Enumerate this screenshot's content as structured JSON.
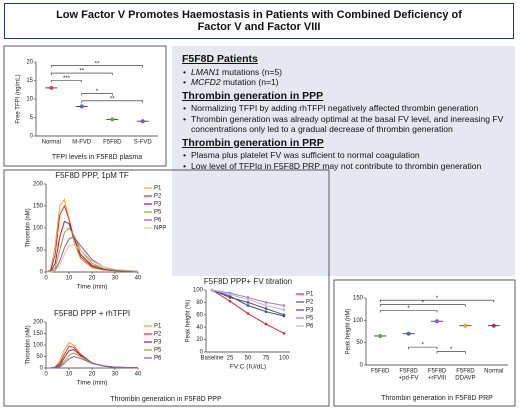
{
  "title": "Low Factor V Promotes Haemostasis in Patients with Combined Deficiency of Factor V and Factor VIII",
  "summary": {
    "patients": {
      "heading": "F5F8D Patients",
      "items": [
        {
          "gene": "LMAN1",
          "rest": " mutations (n=5)"
        },
        {
          "gene": "MCFD2",
          "rest": " mutation (n=1)"
        }
      ]
    },
    "sections": [
      {
        "heading": "Thrombin generation in PPP",
        "items": [
          "Normalizing TFPI by adding rhTFPI negatively affected thrombin generation",
          "Thrombin generation was already optimal at the basal FV level, and inereasing FV concentrations only led to a gradual decrease of thrombin generation"
        ]
      },
      {
        "heading": "Thrombin generation in PRP",
        "items": [
          "Plasma plus platelet FV was sufficient to normal coagulation",
          "Low level of TFPIα in F5F8D PRP may not contribute to thrombin generation"
        ]
      }
    ]
  },
  "middle_caption": "Thrombin generation in F5F8D PPP",
  "chart_data": [
    {
      "type": "dot",
      "ylabel": "Free TFPI (ng/mL)",
      "caption": "TFPI levels in F5F8D plasma",
      "categories": [
        [
          "Normal"
        ],
        [
          "M-FVD"
        ],
        [
          "F5F8D"
        ],
        [
          "S-FVD"
        ]
      ],
      "values": [
        13,
        8,
        4.5,
        4
      ],
      "colors": [
        "#d0455a",
        "#5a6fb0",
        "#5fa84a",
        "#7a5aa8"
      ],
      "ylim": [
        0,
        20
      ],
      "yticks": [
        0,
        5,
        10,
        15,
        20
      ],
      "annotations": [
        "**",
        "**",
        "***",
        "*",
        "**"
      ]
    },
    {
      "type": "line",
      "title": "F5F8D PPP, 1pM TF",
      "xlabel": "Time (min)",
      "ylabel": "Thrombin (nM)",
      "x": [
        0,
        2,
        4,
        6,
        8,
        10,
        12,
        15,
        20,
        25,
        30,
        40
      ],
      "xlim": [
        0,
        40
      ],
      "xticks": [
        0,
        10,
        20,
        30,
        40
      ],
      "ylim": [
        0,
        200
      ],
      "yticks": [
        0,
        50,
        100,
        150,
        200
      ],
      "series": [
        {
          "name": "P1",
          "color": "#e8a13a",
          "values": [
            0,
            5,
            60,
            150,
            165,
            120,
            70,
            30,
            10,
            5,
            3,
            2
          ]
        },
        {
          "name": "P2",
          "color": "#d6332f",
          "values": [
            0,
            3,
            40,
            130,
            150,
            120,
            80,
            35,
            12,
            5,
            3,
            2
          ]
        },
        {
          "name": "P3",
          "color": "#8e2a4a",
          "values": [
            0,
            2,
            20,
            80,
            115,
            110,
            80,
            40,
            15,
            6,
            3,
            2
          ]
        },
        {
          "name": "P5",
          "color": "#8aa23a",
          "values": [
            0,
            1,
            10,
            50,
            90,
            100,
            85,
            50,
            20,
            8,
            4,
            2
          ]
        },
        {
          "name": "P6",
          "color": "#8a5ab8",
          "values": [
            0,
            0,
            5,
            25,
            55,
            75,
            80,
            60,
            28,
            12,
            5,
            2
          ]
        },
        {
          "name": "NPP",
          "color": "#e8c48a",
          "values": [
            0,
            0,
            3,
            15,
            40,
            60,
            62,
            50,
            25,
            12,
            6,
            2
          ]
        }
      ]
    },
    {
      "type": "line",
      "title": "F5F8D PPP + rhTFPI",
      "xlabel": "Time (min)",
      "ylabel": "Thrombin (nM)",
      "x": [
        0,
        2,
        4,
        6,
        8,
        10,
        12,
        15,
        20,
        25,
        30,
        40
      ],
      "xlim": [
        0,
        40
      ],
      "xticks": [
        0,
        10,
        20,
        30,
        40
      ],
      "ylim": [
        0,
        200
      ],
      "yticks": [
        0,
        50,
        100,
        150,
        200
      ],
      "series": [
        {
          "name": "P1",
          "color": "#e8a13a",
          "values": [
            0,
            0,
            5,
            30,
            80,
            110,
            100,
            60,
            20,
            8,
            3,
            1
          ]
        },
        {
          "name": "P2",
          "color": "#d6332f",
          "values": [
            0,
            0,
            3,
            20,
            60,
            95,
            90,
            60,
            22,
            8,
            3,
            1
          ]
        },
        {
          "name": "P3",
          "color": "#8e2a4a",
          "values": [
            0,
            0,
            2,
            12,
            45,
            75,
            80,
            55,
            22,
            9,
            3,
            1
          ]
        },
        {
          "name": "P5",
          "color": "#8aa23a",
          "values": [
            0,
            0,
            1,
            8,
            30,
            55,
            65,
            50,
            22,
            9,
            4,
            1
          ]
        },
        {
          "name": "P6",
          "color": "#8a5ab8",
          "values": [
            0,
            0,
            1,
            5,
            20,
            40,
            50,
            42,
            20,
            9,
            4,
            1
          ]
        }
      ]
    },
    {
      "type": "line",
      "title": "F5F8D PPP+ FV titration",
      "xlabel": "FV:C (IU/dL)",
      "ylabel": "Peak height (%)",
      "categories": [
        "Baseline",
        "25",
        "50",
        "75",
        "100"
      ],
      "ylim": [
        0,
        100
      ],
      "yticks": [
        0,
        20,
        40,
        60,
        80,
        100
      ],
      "series": [
        {
          "name": "P1",
          "color": "#c0304a",
          "values": [
            100,
            82,
            62,
            45,
            30
          ]
        },
        {
          "name": "P2",
          "color": "#555555",
          "values": [
            100,
            88,
            80,
            70,
            60
          ]
        },
        {
          "name": "P3",
          "color": "#3b4aa0",
          "values": [
            100,
            90,
            75,
            65,
            58
          ]
        },
        {
          "name": "P5",
          "color": "#a07cc0",
          "values": [
            100,
            95,
            88,
            80,
            75
          ]
        },
        {
          "name": "P6",
          "color": "#c0b0dc",
          "values": [
            100,
            93,
            85,
            75,
            68
          ]
        }
      ]
    },
    {
      "type": "dot",
      "ylabel": "Peak height (nM)",
      "caption": "Thrombin generation in F5F8D PRP",
      "categories": [
        [
          "F5F8D"
        ],
        [
          "F5F8D",
          "+pd-FV"
        ],
        [
          "F5F8D",
          "+rFVIII"
        ],
        [
          "F5F8D",
          "DDAVP"
        ],
        [
          "Normal"
        ]
      ],
      "values": [
        65,
        70,
        98,
        88,
        88
      ],
      "colors": [
        "#5fa84a",
        "#3b6fb0",
        "#8a5ab8",
        "#e8a13a",
        "#c0304a"
      ],
      "ylim": [
        0,
        150
      ],
      "yticks": [
        0,
        50,
        100,
        150
      ],
      "annotations": [
        "*",
        "*",
        "*",
        "*",
        "*"
      ]
    }
  ]
}
